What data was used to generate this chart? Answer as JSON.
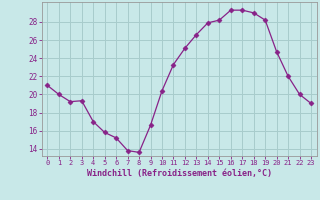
{
  "x": [
    0,
    1,
    2,
    3,
    4,
    5,
    6,
    7,
    8,
    9,
    10,
    11,
    12,
    13,
    14,
    15,
    16,
    17,
    18,
    19,
    20,
    21,
    22,
    23
  ],
  "y": [
    21.0,
    20.0,
    19.2,
    19.3,
    17.0,
    15.8,
    15.2,
    13.8,
    13.6,
    16.6,
    20.4,
    23.3,
    25.1,
    26.6,
    27.9,
    28.2,
    29.3,
    29.3,
    29.0,
    28.2,
    24.7,
    22.0,
    20.0,
    19.0
  ],
  "line_color": "#882288",
  "marker": "D",
  "marker_size": 2.5,
  "bg_color": "#c8e8e8",
  "grid_color": "#a8cccc",
  "xlabel": "Windchill (Refroidissement éolien,°C)",
  "xlabel_color": "#882288",
  "tick_color": "#882288",
  "ylabel_ticks": [
    14,
    16,
    18,
    20,
    22,
    24,
    26,
    28
  ],
  "ylim": [
    13.2,
    30.2
  ],
  "xlim": [
    -0.5,
    23.5
  ],
  "font_color": "#882288"
}
